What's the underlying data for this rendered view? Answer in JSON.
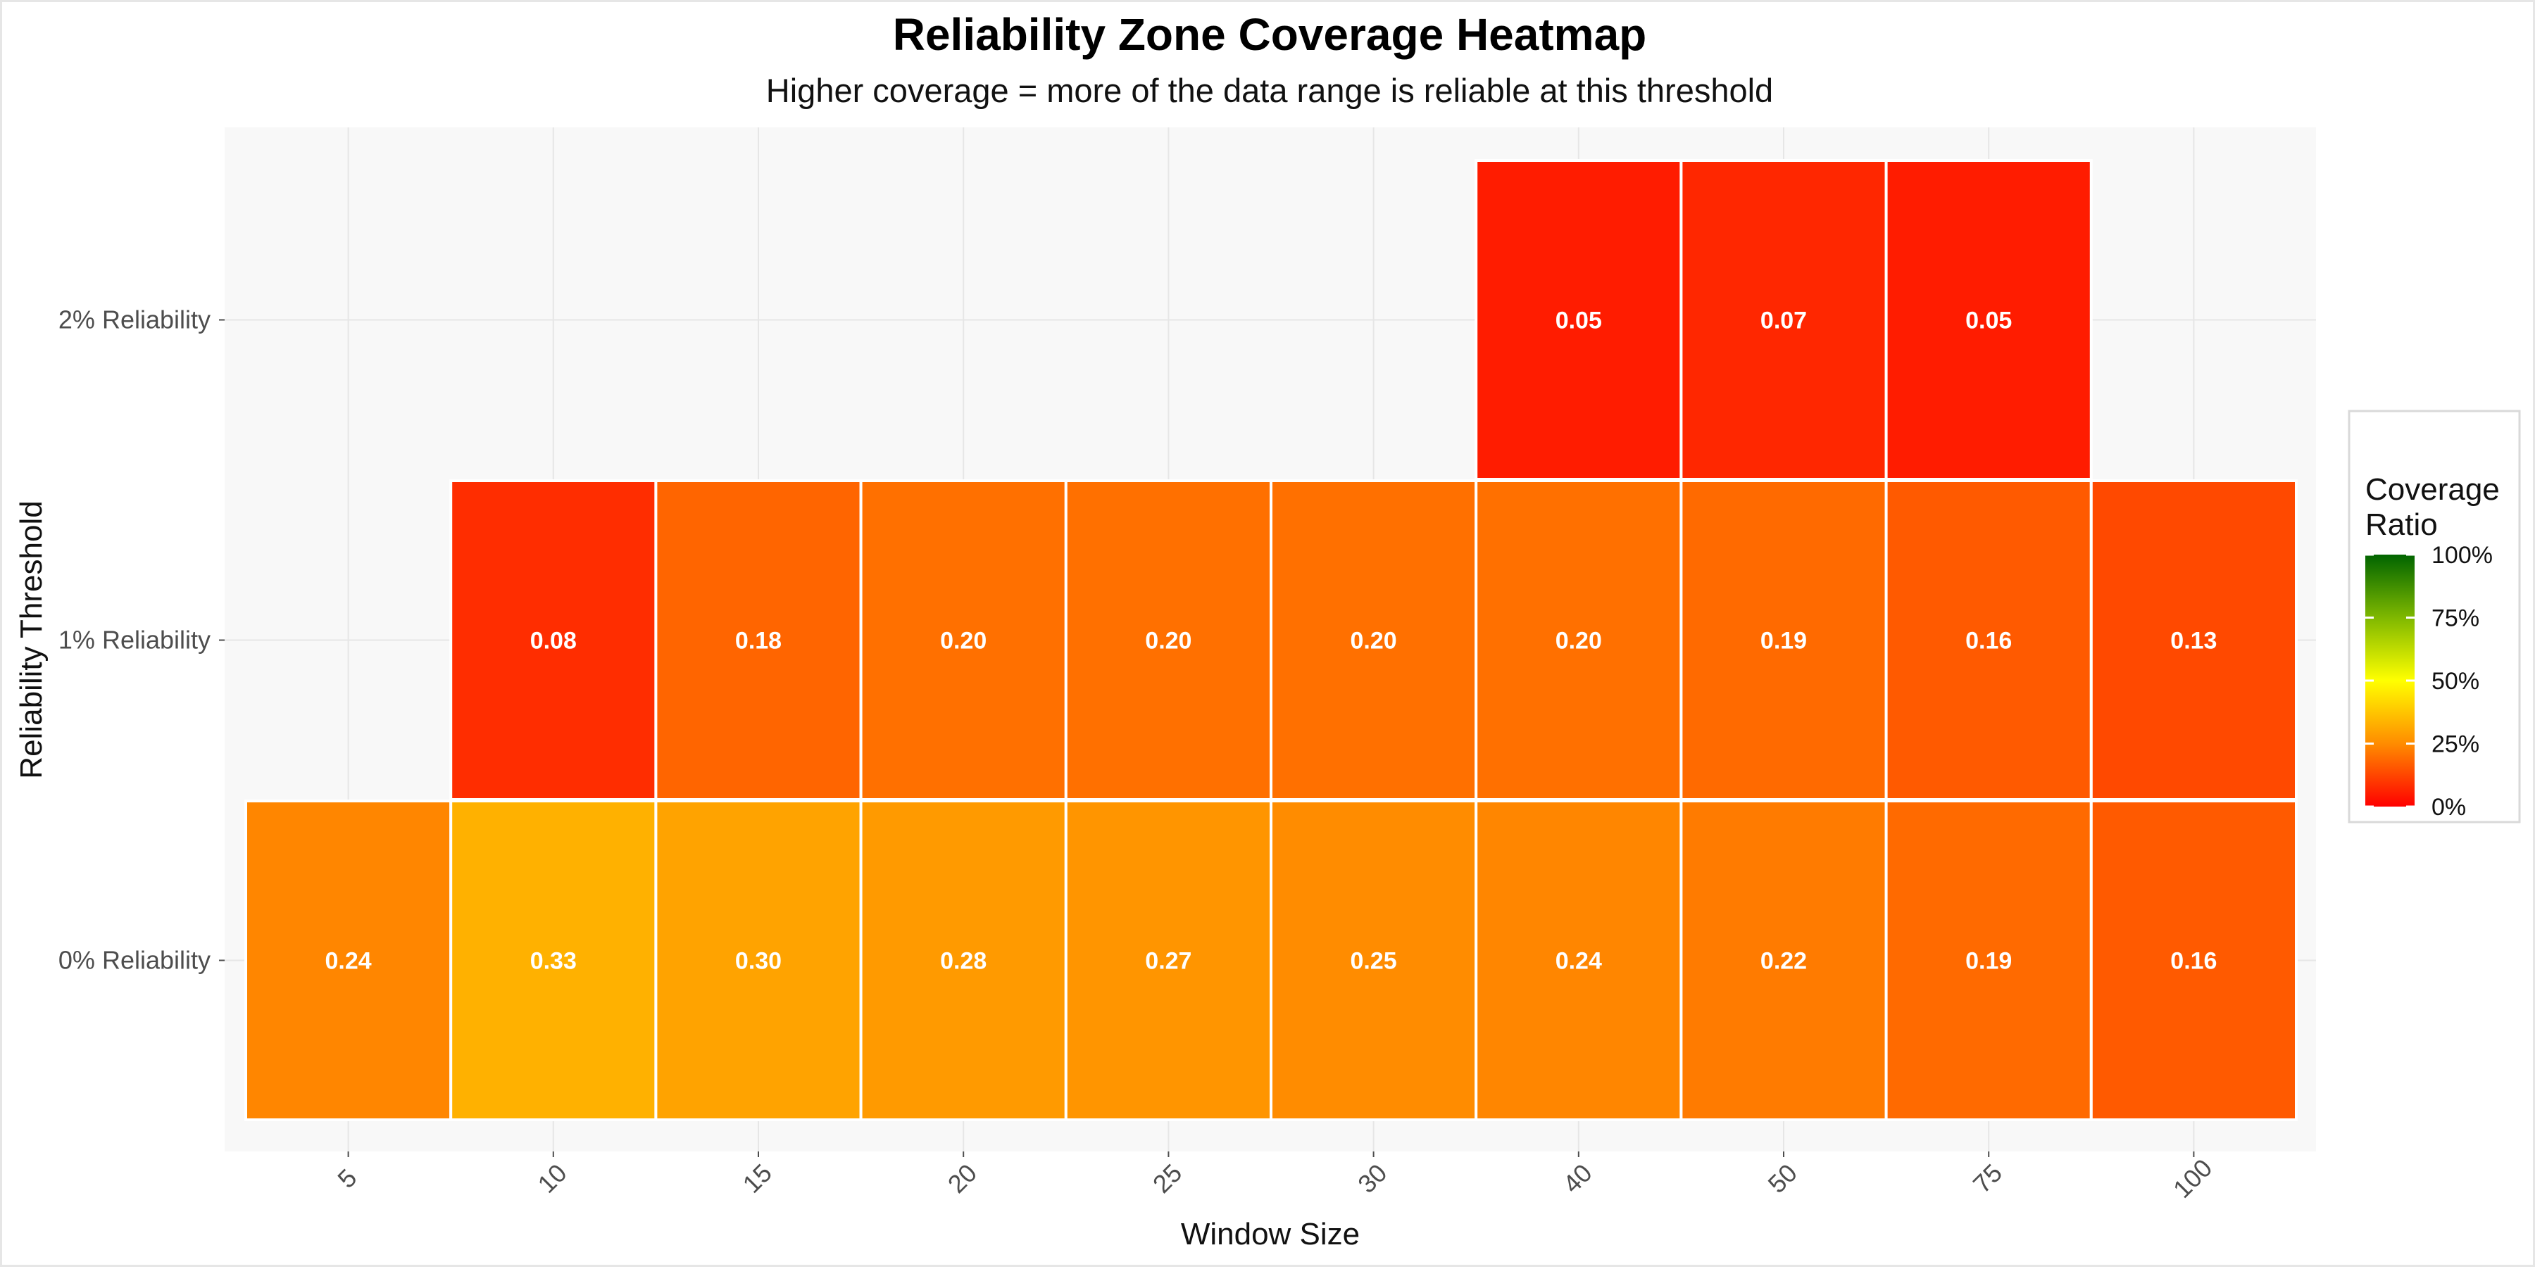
{
  "chart_data": {
    "type": "heatmap",
    "title": "Reliability Zone Coverage Heatmap",
    "subtitle": "Higher coverage = more of the data range is reliable at this threshold",
    "xlabel": "Window Size",
    "ylabel": "Reliability Threshold",
    "x": [
      "5",
      "10",
      "15",
      "20",
      "25",
      "30",
      "40",
      "50",
      "75",
      "100"
    ],
    "y": [
      "0% Reliability",
      "1% Reliability",
      "2% Reliability"
    ],
    "cells": [
      {
        "x": "5",
        "y": "0% Reliability",
        "value": 0.24,
        "label": "0.24"
      },
      {
        "x": "10",
        "y": "0% Reliability",
        "value": 0.33,
        "label": "0.33"
      },
      {
        "x": "15",
        "y": "0% Reliability",
        "value": 0.3,
        "label": "0.30"
      },
      {
        "x": "20",
        "y": "0% Reliability",
        "value": 0.28,
        "label": "0.28"
      },
      {
        "x": "25",
        "y": "0% Reliability",
        "value": 0.27,
        "label": "0.27"
      },
      {
        "x": "30",
        "y": "0% Reliability",
        "value": 0.25,
        "label": "0.25"
      },
      {
        "x": "40",
        "y": "0% Reliability",
        "value": 0.24,
        "label": "0.24"
      },
      {
        "x": "50",
        "y": "0% Reliability",
        "value": 0.22,
        "label": "0.22"
      },
      {
        "x": "75",
        "y": "0% Reliability",
        "value": 0.19,
        "label": "0.19"
      },
      {
        "x": "100",
        "y": "0% Reliability",
        "value": 0.16,
        "label": "0.16"
      },
      {
        "x": "10",
        "y": "1% Reliability",
        "value": 0.08,
        "label": "0.08"
      },
      {
        "x": "15",
        "y": "1% Reliability",
        "value": 0.18,
        "label": "0.18"
      },
      {
        "x": "20",
        "y": "1% Reliability",
        "value": 0.2,
        "label": "0.20"
      },
      {
        "x": "25",
        "y": "1% Reliability",
        "value": 0.2,
        "label": "0.20"
      },
      {
        "x": "30",
        "y": "1% Reliability",
        "value": 0.2,
        "label": "0.20"
      },
      {
        "x": "40",
        "y": "1% Reliability",
        "value": 0.2,
        "label": "0.20"
      },
      {
        "x": "50",
        "y": "1% Reliability",
        "value": 0.19,
        "label": "0.19"
      },
      {
        "x": "75",
        "y": "1% Reliability",
        "value": 0.16,
        "label": "0.16"
      },
      {
        "x": "100",
        "y": "1% Reliability",
        "value": 0.13,
        "label": "0.13"
      },
      {
        "x": "40",
        "y": "2% Reliability",
        "value": 0.05,
        "label": "0.05"
      },
      {
        "x": "50",
        "y": "2% Reliability",
        "value": 0.07,
        "label": "0.07"
      },
      {
        "x": "75",
        "y": "2% Reliability",
        "value": 0.05,
        "label": "0.05"
      }
    ],
    "color_scale": {
      "domain": [
        0,
        0.25,
        0.5,
        0.75,
        1.0
      ],
      "colors": [
        "#ff0000",
        "#ff8c00",
        "#ffff00",
        "#7fb800",
        "#006400"
      ]
    },
    "legend": {
      "title": "Coverage Ratio",
      "title_lines": [
        "Coverage",
        "Ratio"
      ],
      "ticks": [
        {
          "value": 0,
          "label": "0%"
        },
        {
          "value": 0.25,
          "label": "25%"
        },
        {
          "value": 0.5,
          "label": "50%"
        },
        {
          "value": 0.75,
          "label": "75%"
        },
        {
          "value": 1.0,
          "label": "100%"
        }
      ],
      "position": "right"
    },
    "grid": true
  }
}
